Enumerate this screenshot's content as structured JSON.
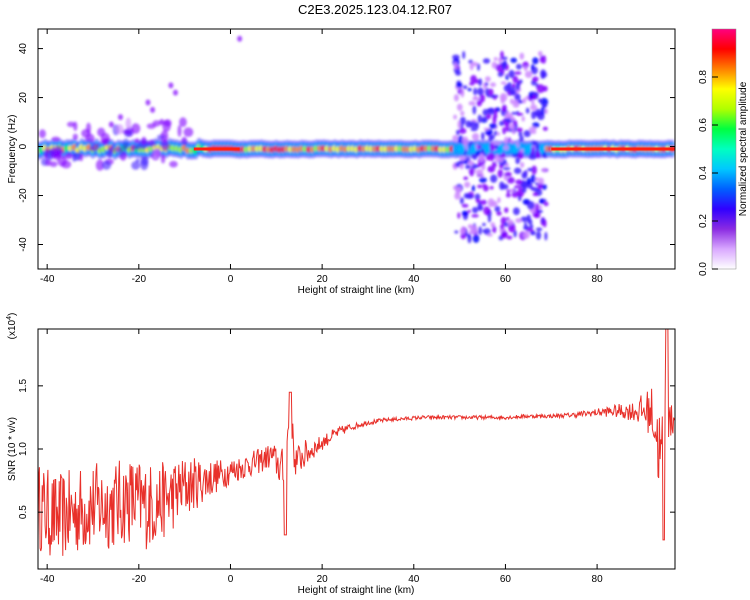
{
  "title": "C2E3.2025.123.04.12.R07",
  "colors": {
    "snr_line": "#e8302a",
    "colormap": [
      "#ffffff",
      "#cc88ff",
      "#8000ff",
      "#4020ff",
      "#0000ff",
      "#00b0ff",
      "#00ffd0",
      "#00ff40",
      "#a0ff00",
      "#ffff00",
      "#ff9000",
      "#ff0000",
      "#ff0080"
    ]
  },
  "chart_data": [
    {
      "type": "heatmap",
      "xlabel": "Height of straight line (km)",
      "ylabel": "Frequency (Hz)",
      "xlim": [
        -42,
        97
      ],
      "ylim": [
        -50,
        48
      ],
      "xticks": [
        -40,
        -20,
        0,
        20,
        40,
        60,
        80
      ],
      "yticks": [
        -40,
        -20,
        0,
        20,
        40
      ],
      "colorbar": {
        "label": "Normalized spectral amplitude",
        "range": [
          0,
          1
        ],
        "ticks": [
          "0.0",
          "0.2",
          "0.4",
          "0.6",
          "0.8"
        ]
      },
      "features": [
        {
          "name": "main_band",
          "x_range": [
            -42,
            97
          ],
          "center_freq": -1,
          "peak_amplitude": 1.0
        },
        {
          "name": "broadband_region",
          "x_range": [
            49,
            69
          ],
          "freq_range": [
            -40,
            40
          ],
          "amplitude": 0.3
        },
        {
          "name": "low_amplitude_spread",
          "x_range": [
            -42,
            -8
          ],
          "freq_range": [
            -10,
            25
          ],
          "amplitude": 0.15
        }
      ]
    },
    {
      "type": "line",
      "xlabel": "Height of straight line (km)",
      "ylabel": "SNR (10 * v/v)",
      "yscale_label": "(x10",
      "yscale_exp": "4",
      "yscale_close": ")",
      "xlim": [
        -42,
        97
      ],
      "ylim": [
        0.05,
        1.95
      ],
      "xticks": [
        -40,
        -20,
        0,
        20,
        40,
        60,
        80
      ],
      "yticks": [
        "0.5",
        "1.0",
        "1.5"
      ],
      "series": [
        {
          "x": [
            -42,
            -38,
            -34,
            -30,
            -26,
            -22,
            -18,
            -14,
            -10,
            -6,
            -2,
            2,
            6,
            9,
            12,
            13,
            14,
            16,
            18,
            20,
            22,
            24,
            26,
            28,
            30,
            34,
            38,
            42,
            46,
            50,
            55,
            60,
            65,
            70,
            75,
            80,
            84,
            88,
            92,
            94,
            95,
            96,
            97
          ],
          "y": [
            0.55,
            0.45,
            0.5,
            0.55,
            0.55,
            0.6,
            0.55,
            0.6,
            0.7,
            0.75,
            0.8,
            0.85,
            0.9,
            0.95,
            0.8,
            1.4,
            0.9,
            0.95,
            1.0,
            1.05,
            1.1,
            1.14,
            1.17,
            1.19,
            1.21,
            1.23,
            1.24,
            1.25,
            1.25,
            1.25,
            1.25,
            1.25,
            1.26,
            1.26,
            1.27,
            1.29,
            1.3,
            1.3,
            1.3,
            0.9,
            1.35,
            1.2,
            1.25
          ],
          "noise_amplitude": [
            0.35,
            0.35,
            0.35,
            0.35,
            0.35,
            0.35,
            0.35,
            0.3,
            0.25,
            0.18,
            0.12,
            0.1,
            0.1,
            0.1,
            0.2,
            0.1,
            0.12,
            0.12,
            0.08,
            0.06,
            0.05,
            0.04,
            0.03,
            0.02,
            0.02,
            0.015,
            0.015,
            0.015,
            0.015,
            0.015,
            0.015,
            0.015,
            0.015,
            0.015,
            0.02,
            0.03,
            0.05,
            0.08,
            0.2,
            0.4,
            0.3,
            0.15,
            0.1
          ]
        }
      ]
    }
  ]
}
